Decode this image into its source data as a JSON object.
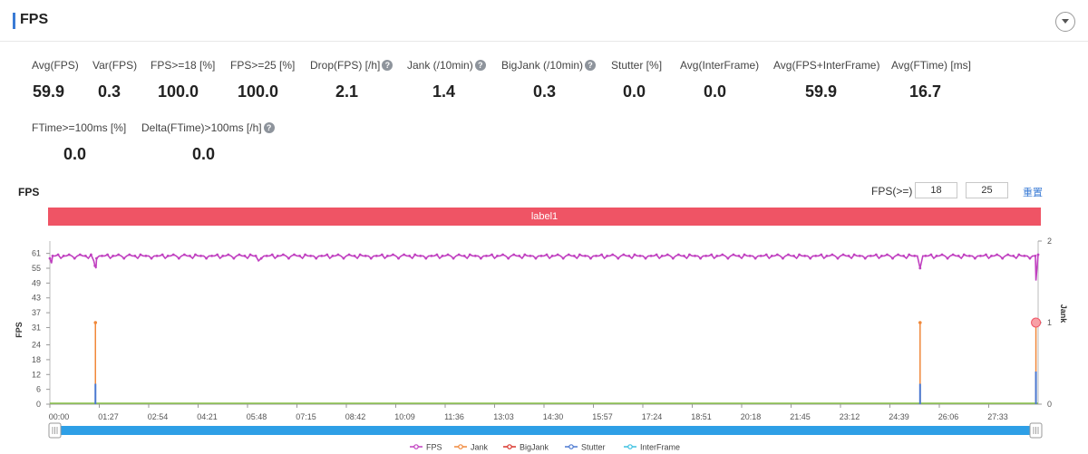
{
  "header": {
    "title": "FPS"
  },
  "metrics": [
    {
      "label": "Avg(FPS)",
      "value": "59.9",
      "help": false
    },
    {
      "label": "Var(FPS)",
      "value": "0.3",
      "help": false
    },
    {
      "label": "FPS>=18 [%]",
      "value": "100.0",
      "help": false
    },
    {
      "label": "FPS>=25 [%]",
      "value": "100.0",
      "help": false
    },
    {
      "label": "Drop(FPS) [/h]",
      "value": "2.1",
      "help": true
    },
    {
      "label": "Jank (/10min)",
      "value": "1.4",
      "help": true
    },
    {
      "label": "BigJank (/10min)",
      "value": "0.3",
      "help": true
    },
    {
      "label": "Stutter [%]",
      "value": "0.0",
      "help": false
    },
    {
      "label": "Avg(InterFrame)",
      "value": "0.0",
      "help": false
    },
    {
      "label": "Avg(FPS+InterFrame)",
      "value": "59.9",
      "help": false
    },
    {
      "label": "Avg(FTime) [ms]",
      "value": "16.7",
      "help": false
    },
    {
      "label": "FTime>=100ms [%]",
      "value": "0.0",
      "help": false
    },
    {
      "label": "Delta(FTime)>100ms [/h]",
      "value": "0.0",
      "help": true
    }
  ],
  "help_glyph": "?",
  "chart_section": {
    "title": "FPS",
    "threshold_label": "FPS(>=)",
    "threshold_low": "18",
    "threshold_high": "25",
    "reset_label": "重置",
    "band_label": "label1",
    "band_color": "#ef5465"
  },
  "chart_data": {
    "type": "line",
    "y_left_label": "FPS",
    "y_right_label": "Jank",
    "y_left_ticks": [
      0,
      6,
      12,
      18,
      24,
      31,
      37,
      43,
      49,
      55,
      61
    ],
    "y_left_range": [
      0,
      66
    ],
    "y_right_ticks": [
      0,
      1,
      2
    ],
    "y_right_range": [
      0,
      2
    ],
    "x_ticks": [
      "00:00",
      "01:27",
      "02:54",
      "04:21",
      "05:48",
      "07:15",
      "08:42",
      "10:09",
      "11:36",
      "13:03",
      "14:30",
      "15:57",
      "17:24",
      "18:51",
      "20:18",
      "21:45",
      "23:12",
      "24:39",
      "26:06",
      "27:33"
    ],
    "x_range_seconds": [
      0,
      1800
    ],
    "fps_baseline": 60,
    "fps_dips": [
      {
        "t": 3,
        "fps": 57
      },
      {
        "t": 80,
        "fps": 58
      },
      {
        "t": 82,
        "fps": 56
      },
      {
        "t": 84,
        "fps": 55
      },
      {
        "t": 380,
        "fps": 58
      },
      {
        "t": 1585,
        "fps": 55
      },
      {
        "t": 1796,
        "fps": 50
      }
    ],
    "jank_events": [
      {
        "t": 83,
        "value": 1
      },
      {
        "t": 1585,
        "value": 1
      },
      {
        "t": 1796,
        "value": 1
      }
    ],
    "stutter_events": [
      {
        "t": 83,
        "value": 0.25
      },
      {
        "t": 1585,
        "value": 0.25
      },
      {
        "t": 1796,
        "value": 0.4
      }
    ],
    "highlight_t": 1796,
    "series": [
      {
        "name": "FPS",
        "color": "#c040c0"
      },
      {
        "name": "Jank",
        "color": "#f0883a"
      },
      {
        "name": "BigJank",
        "color": "#d9342b"
      },
      {
        "name": "Stutter",
        "color": "#4a78d0"
      },
      {
        "name": "InterFrame",
        "color": "#3cc0e0"
      }
    ],
    "baseline_color": "#8ac44a",
    "slider_color": "#2e9fe6"
  }
}
